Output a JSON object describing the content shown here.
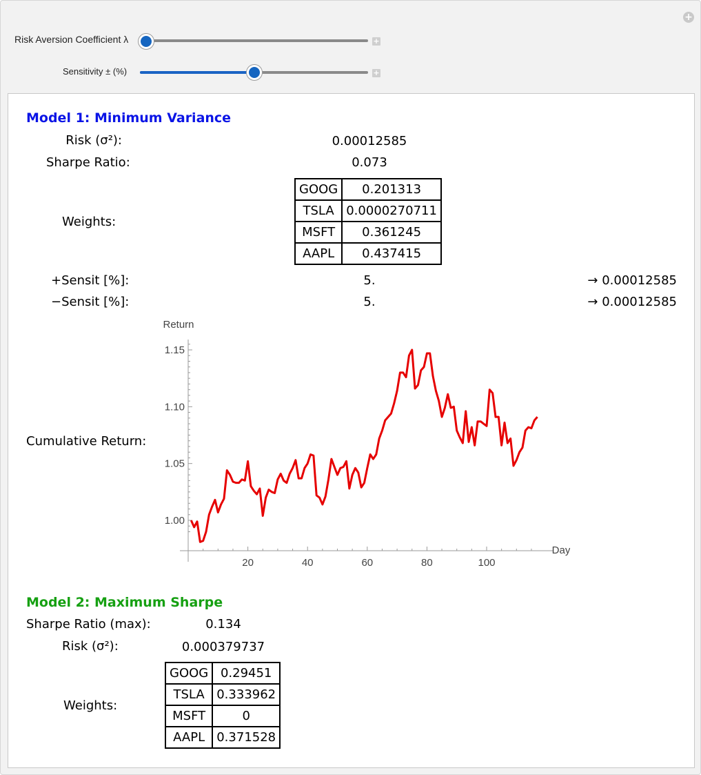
{
  "controls": {
    "risk_label": "Risk Aversion Coefficient λ",
    "risk_value_fraction": 0.0,
    "sensitivity_label": "Sensitivity ± (%)",
    "sensitivity_value_fraction": 0.5
  },
  "model1": {
    "title": "Model 1: Minimum Variance",
    "risk_label": "Risk (σ²):",
    "risk_value": "0.00012585",
    "sharpe_label": "Sharpe Ratio:",
    "sharpe_value": "0.073",
    "weights_label": "Weights:",
    "weights": [
      {
        "ticker": "GOOG",
        "value": "0.201313"
      },
      {
        "ticker": "TSLA",
        "value": "0.0000270711"
      },
      {
        "ticker": "MSFT",
        "value": "0.361245"
      },
      {
        "ticker": "AAPL",
        "value": "0.437415"
      }
    ],
    "plus_sensit_label": "+Sensit [%]:",
    "plus_sensit_value": "5.",
    "plus_sensit_result": "→ 0.00012585",
    "minus_sensit_label": "−Sensit [%]:",
    "minus_sensit_value": "5.",
    "minus_sensit_result": "→ 0.00012585",
    "cumulative_label": "Cumulative Return:"
  },
  "model2": {
    "title": "Model 2: Maximum Sharpe",
    "sharpe_label": "Sharpe Ratio (max):",
    "sharpe_value": "0.134",
    "risk_label": "Risk (σ²):",
    "risk_value": "0.000379737",
    "weights_label": "Weights:",
    "weights": [
      {
        "ticker": "GOOG",
        "value": "0.29451"
      },
      {
        "ticker": "TSLA",
        "value": "0.333962"
      },
      {
        "ticker": "MSFT",
        "value": "0"
      },
      {
        "ticker": "AAPL",
        "value": "0.371528"
      }
    ]
  },
  "colors": {
    "model1": "#0a14e6",
    "model2": "#16a012",
    "line": "#e60000",
    "slider": "#1565c0"
  },
  "chart_data": {
    "type": "line",
    "xlabel": "Day",
    "ylabel": "Return",
    "xlim": [
      0,
      125
    ],
    "ylim": [
      0.972,
      1.16
    ],
    "x_ticks": [
      20,
      40,
      60,
      80,
      100
    ],
    "y_ticks": [
      "1.00",
      "1.05",
      "1.10",
      "1.15"
    ],
    "series": [
      {
        "values": [
          1.0,
          0.994,
          0.999,
          0.981,
          0.982,
          0.99,
          1.005,
          1.012,
          1.018,
          1.007,
          1.014,
          1.019,
          1.044,
          1.04,
          1.034,
          1.033,
          1.033,
          1.036,
          1.035,
          1.052,
          1.03,
          1.026,
          1.023,
          1.028,
          1.004,
          1.02,
          1.027,
          1.025,
          1.024,
          1.036,
          1.041,
          1.035,
          1.033,
          1.041,
          1.046,
          1.053,
          1.037,
          1.037,
          1.046,
          1.05,
          1.058,
          1.057,
          1.022,
          1.02,
          1.014,
          1.021,
          1.036,
          1.054,
          1.047,
          1.04,
          1.046,
          1.047,
          1.052,
          1.028,
          1.04,
          1.046,
          1.042,
          1.029,
          1.033,
          1.046,
          1.058,
          1.054,
          1.058,
          1.072,
          1.079,
          1.088,
          1.091,
          1.094,
          1.103,
          1.114,
          1.13,
          1.13,
          1.126,
          1.145,
          1.15,
          1.116,
          1.119,
          1.132,
          1.135,
          1.147,
          1.147,
          1.127,
          1.114,
          1.105,
          1.091,
          1.099,
          1.111,
          1.099,
          1.1,
          1.079,
          1.073,
          1.068,
          1.096,
          1.069,
          1.082,
          1.066,
          1.087,
          1.087,
          1.085,
          1.083,
          1.115,
          1.112,
          1.091,
          1.091,
          1.066,
          1.086,
          1.068,
          1.072,
          1.048,
          1.053,
          1.06,
          1.064,
          1.079,
          1.082,
          1.081,
          1.088,
          1.091
        ]
      }
    ]
  }
}
